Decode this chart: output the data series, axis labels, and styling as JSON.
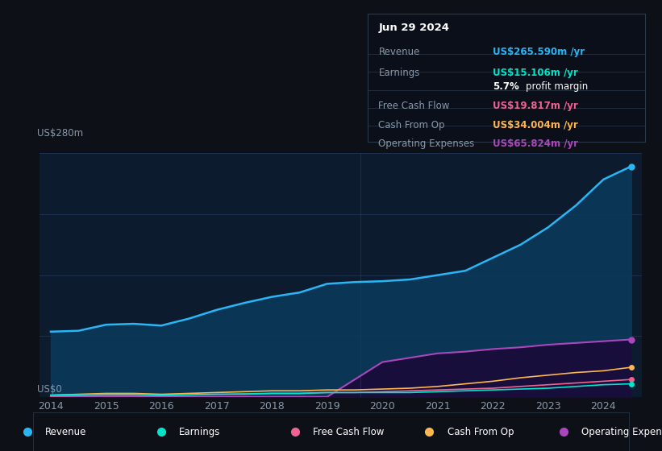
{
  "bg_color": "#0d1117",
  "plot_bg_color": "#0d1b2e",
  "grid_color": "#1e3050",
  "ylabel_top": "US$280m",
  "ylabel_zero": "US$0",
  "years_x": [
    2014,
    2014.5,
    2015,
    2015.5,
    2016,
    2016.5,
    2017,
    2017.5,
    2018,
    2018.5,
    2019,
    2019.5,
    2020,
    2020.5,
    2021,
    2021.5,
    2022,
    2022.5,
    2023,
    2023.5,
    2024,
    2024.5
  ],
  "revenue": [
    75,
    76,
    83,
    84,
    82,
    90,
    100,
    108,
    115,
    120,
    130,
    132,
    133,
    135,
    140,
    145,
    160,
    175,
    195,
    220,
    250,
    265
  ],
  "earnings": [
    2,
    2.5,
    3,
    3,
    2,
    2.5,
    3,
    3.5,
    4,
    4,
    5,
    5,
    5,
    5,
    6,
    7,
    8,
    9,
    10,
    12,
    14,
    15
  ],
  "free_cash_flow": [
    1,
    1.5,
    2,
    2,
    1.5,
    2,
    3,
    3,
    4,
    4,
    5,
    5,
    6,
    7,
    8,
    9,
    10,
    12,
    14,
    16,
    18,
    20
  ],
  "cash_from_op": [
    2,
    3,
    4,
    4,
    3,
    4,
    5,
    6,
    7,
    7,
    8,
    8,
    9,
    10,
    12,
    15,
    18,
    22,
    25,
    28,
    30,
    34
  ],
  "operating_expenses": [
    0,
    0,
    0,
    0,
    0,
    0,
    0,
    0,
    0,
    0,
    0,
    20,
    40,
    45,
    50,
    52,
    55,
    57,
    60,
    62,
    64,
    66
  ],
  "revenue_color": "#29b6f6",
  "revenue_fill": "#0a3a5c",
  "earnings_color": "#00e5c9",
  "free_cash_flow_color": "#f06292",
  "cash_from_op_color": "#ffb74d",
  "operating_expenses_color": "#ab47bc",
  "operating_expenses_fill": "#1a0a3a",
  "tooltip_bg": "#0a0f1a",
  "tooltip_border": "#2a3a4a",
  "title_date": "Jun 29 2024",
  "info_rows": [
    {
      "label": "Revenue",
      "value": "US$265.590m /yr",
      "value_color": "#29b6f6"
    },
    {
      "label": "Earnings",
      "value": "US$15.106m /yr",
      "value_color": "#00e5c9"
    },
    {
      "label": "",
      "value": "5.7% profit margin",
      "value_color": "#ffffff"
    },
    {
      "label": "Free Cash Flow",
      "value": "US$19.817m /yr",
      "value_color": "#f06292"
    },
    {
      "label": "Cash From Op",
      "value": "US$34.004m /yr",
      "value_color": "#ffb74d"
    },
    {
      "label": "Operating Expenses",
      "value": "US$65.824m /yr",
      "value_color": "#ab47bc"
    }
  ],
  "legend_items": [
    {
      "label": "Revenue",
      "color": "#29b6f6"
    },
    {
      "label": "Earnings",
      "color": "#00e5c9"
    },
    {
      "label": "Free Cash Flow",
      "color": "#f06292"
    },
    {
      "label": "Cash From Op",
      "color": "#ffb74d"
    },
    {
      "label": "Operating Expenses",
      "color": "#ab47bc"
    }
  ],
  "xticklabels": [
    "2014",
    "2015",
    "2016",
    "2017",
    "2018",
    "2019",
    "2020",
    "2021",
    "2022",
    "2023",
    "2024"
  ],
  "xticks": [
    2014,
    2015,
    2016,
    2017,
    2018,
    2019,
    2020,
    2021,
    2022,
    2023,
    2024
  ],
  "ylim": [
    0,
    280
  ],
  "xlim": [
    2013.8,
    2024.7
  ]
}
